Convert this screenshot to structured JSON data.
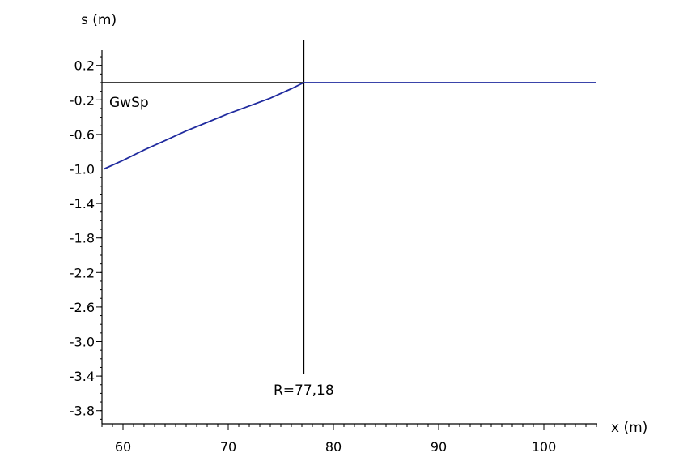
{
  "chart_data": {
    "type": "line",
    "title": "",
    "xlabel": "x (m)",
    "ylabel": "s (m)",
    "xlim": [
      58,
      105
    ],
    "ylim": [
      -4.0,
      0.4
    ],
    "x_ticks": [
      60,
      70,
      80,
      90,
      100
    ],
    "y_ticks": [
      0.2,
      -0.2,
      -0.6,
      -1.0,
      -1.4,
      -1.8,
      -2.2,
      -2.6,
      -3.0,
      -3.4,
      -3.8
    ],
    "x_tick_labels": [
      "60",
      "70",
      "80",
      "90",
      "100"
    ],
    "y_tick_labels": [
      "0.2",
      "-0.2",
      "-0.6",
      "-1.0",
      "-1.4",
      "-1.8",
      "-2.2",
      "-2.6",
      "-3.0",
      "-3.4",
      "-3.8"
    ],
    "grid": false,
    "series": [
      {
        "name": "",
        "color": "#1f2a9e",
        "x": [
          58.2,
          60,
          62,
          64,
          66,
          68,
          70,
          72,
          74,
          76,
          77.18,
          80,
          85,
          90,
          95,
          100,
          105
        ],
        "y": [
          -1.0,
          -0.9,
          -0.78,
          -0.67,
          -0.56,
          -0.46,
          -0.36,
          -0.27,
          -0.18,
          -0.07,
          0.0,
          0.0,
          0.0,
          0.0,
          0.0,
          0.0,
          0.0
        ]
      }
    ],
    "reference_lines": {
      "horizontal": {
        "y": 0.0,
        "color": "#000000"
      },
      "vertical": {
        "x": 77.18,
        "color": "#000000"
      }
    },
    "annotations": {
      "gwsp_label": "GwSp",
      "radius_label": "R=77,18"
    }
  }
}
